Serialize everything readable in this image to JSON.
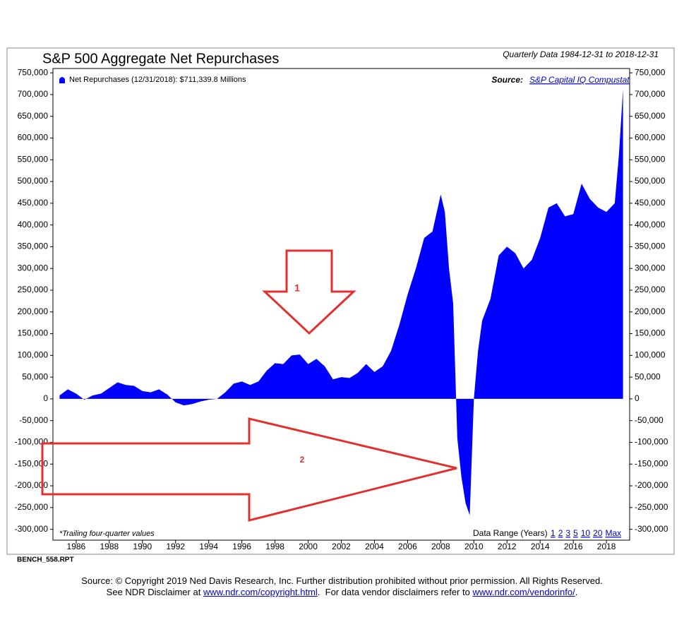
{
  "chart_data": {
    "type": "area",
    "title": "S&P 500 Aggregate Net Repurchases",
    "subtitle": "Quarterly Data 1984-12-31 to 2018-12-31",
    "x": [
      1985.0,
      1985.5,
      1986.0,
      1986.5,
      1987.0,
      1987.5,
      1988.0,
      1988.5,
      1989.0,
      1989.5,
      1990.0,
      1990.5,
      1991.0,
      1991.5,
      1992.0,
      1992.5,
      1993.0,
      1993.5,
      1994.0,
      1994.5,
      1995.0,
      1995.5,
      1996.0,
      1996.5,
      1997.0,
      1997.5,
      1998.0,
      1998.5,
      1999.0,
      1999.5,
      2000.0,
      2000.5,
      2001.0,
      2001.5,
      2002.0,
      2002.5,
      2003.0,
      2003.5,
      2004.0,
      2004.5,
      2005.0,
      2005.5,
      2006.0,
      2006.5,
      2007.0,
      2007.5,
      2008.0,
      2008.25,
      2008.5,
      2008.75,
      2009.0,
      2009.25,
      2009.5,
      2009.75,
      2010.0,
      2010.25,
      2010.5,
      2011.0,
      2011.5,
      2012.0,
      2012.5,
      2013.0,
      2013.5,
      2014.0,
      2014.5,
      2015.0,
      2015.5,
      2016.0,
      2016.5,
      2017.0,
      2017.5,
      2018.0,
      2018.5,
      2018.75,
      2019.0
    ],
    "series": [
      {
        "name": "Net Repurchases (12/31/2018): $711,339.8 Millions",
        "color": "#0000ff",
        "values": [
          8000,
          22000,
          12000,
          -2000,
          8000,
          12000,
          25000,
          38000,
          32000,
          30000,
          18000,
          15000,
          22000,
          10000,
          -8000,
          -15000,
          -12000,
          -6000,
          -2000,
          0,
          15000,
          35000,
          40000,
          32000,
          40000,
          65000,
          82000,
          80000,
          100000,
          102000,
          80000,
          92000,
          75000,
          45000,
          50000,
          48000,
          60000,
          80000,
          62000,
          75000,
          110000,
          170000,
          240000,
          300000,
          370000,
          385000,
          470000,
          430000,
          300000,
          220000,
          -90000,
          -180000,
          -240000,
          -268000,
          0,
          110000,
          180000,
          230000,
          330000,
          350000,
          335000,
          300000,
          320000,
          370000,
          440000,
          450000,
          420000,
          425000,
          495000,
          460000,
          440000,
          430000,
          450000,
          560000,
          711339.8
        ]
      }
    ],
    "xlim": [
      1984.6,
      2019.4
    ],
    "ylim": [
      -325000,
      760000
    ],
    "xticks": [
      1986,
      1988,
      1990,
      1992,
      1994,
      1996,
      1998,
      2000,
      2002,
      2004,
      2006,
      2008,
      2010,
      2012,
      2014,
      2016,
      2018
    ],
    "yticks": [
      {
        "value": -300000,
        "label": "-300,000"
      },
      {
        "value": -250000,
        "label": "-250,000"
      },
      {
        "value": -200000,
        "label": "-200,000"
      },
      {
        "value": -150000,
        "label": "-150,000"
      },
      {
        "value": -100000,
        "label": "-100,000"
      },
      {
        "value": -50000,
        "label": "-50,000"
      },
      0,
      {
        "value": 50000,
        "label": "50,000"
      },
      {
        "value": 100000,
        "label": "100,000"
      },
      {
        "value": 150000,
        "label": "150,000"
      },
      {
        "value": 200000,
        "label": "200,000"
      },
      {
        "value": 250000,
        "label": "250,000"
      },
      {
        "value": 300000,
        "label": "300,000"
      },
      {
        "value": 350000,
        "label": "350,000"
      },
      {
        "value": 400000,
        "label": "400,000"
      },
      {
        "value": 450000,
        "label": "450,000"
      },
      {
        "value": 500000,
        "label": "500,000"
      },
      {
        "value": 550000,
        "label": "550,000"
      },
      {
        "value": 600000,
        "label": "600,000"
      },
      {
        "value": 650000,
        "label": "650,000"
      },
      {
        "value": 700000,
        "label": "700,000"
      },
      {
        "value": 750000,
        "label": "750,000"
      }
    ],
    "grid": false,
    "legend": "upper left",
    "note": "*Trailing four-quarter values",
    "source_label": "Source:",
    "source": "S&P Capital IQ Compustat",
    "data_range_label": "Data Range (Years)",
    "data_range_options": [
      "1",
      "2",
      "3",
      "5",
      "10",
      "20",
      "Max"
    ],
    "annotations": [
      "1",
      "2"
    ]
  },
  "report_id": "BENCH_558.RPT",
  "footer": {
    "line1": "Source: © Copyright 2019 Ned Davis Research, Inc. Further distribution prohibited without prior permission. All Rights Reserved.",
    "line2": [
      "See NDR Disclaimer at",
      "www.ndr.com/copyright.html",
      ".  For data vendor disclaimers refer to",
      "www.ndr.com/vendorinfo/",
      "."
    ]
  }
}
